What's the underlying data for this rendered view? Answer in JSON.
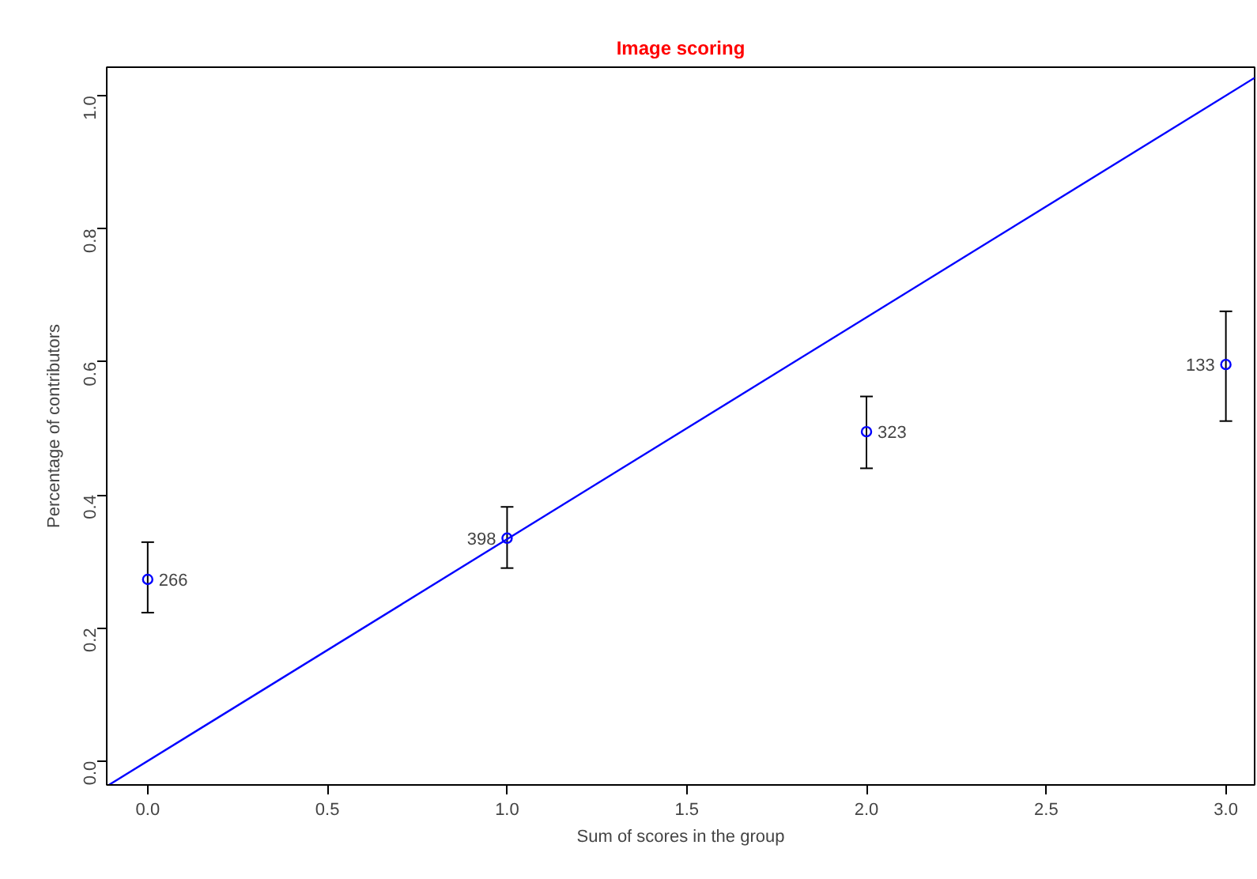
{
  "chart_data": {
    "type": "scatter",
    "title": "Image scoring",
    "xlabel": "Sum of scores in the group",
    "ylabel": "Percentage of contributors",
    "x": [
      0,
      1,
      2,
      3
    ],
    "series": [
      {
        "color": "#0000ff",
        "marker": "circle",
        "values": [
          0.273,
          0.335,
          0.495,
          0.596
        ],
        "errors": [
          [
            0.223,
            0.329
          ],
          [
            0.29,
            0.382
          ],
          [
            0.44,
            0.548
          ],
          [
            0.511,
            0.676
          ]
        ]
      },
      {
        "type": "line",
        "color": "#0000ff",
        "line_style": "solid",
        "x": [
          -0.108,
          3.08
        ],
        "values": [
          -0.036,
          1.027
        ]
      }
    ],
    "annotations": [
      {
        "text": "266",
        "x": 0,
        "y": 0.273
      },
      {
        "text": "398",
        "x": 1,
        "y": 0.335
      },
      {
        "text": "323",
        "x": 2,
        "y": 0.495
      },
      {
        "text": "133",
        "x": 3,
        "y": 0.596
      }
    ],
    "xlim": [
      -0.114,
      3.08
    ],
    "ylim": [
      -0.036,
      1.043
    ],
    "xticks": [
      {
        "value": 0,
        "label": "0.0"
      },
      0.5,
      {
        "value": 1,
        "label": "1.0"
      },
      1.5,
      {
        "value": 2,
        "label": "2.0"
      },
      2.5,
      {
        "value": 3,
        "label": "3.0"
      }
    ],
    "yticks": [
      {
        "value": 0,
        "label": "0.0"
      },
      0.2,
      0.4,
      0.6,
      0.8,
      {
        "value": 1,
        "label": "1.0"
      }
    ],
    "grid": false
  }
}
